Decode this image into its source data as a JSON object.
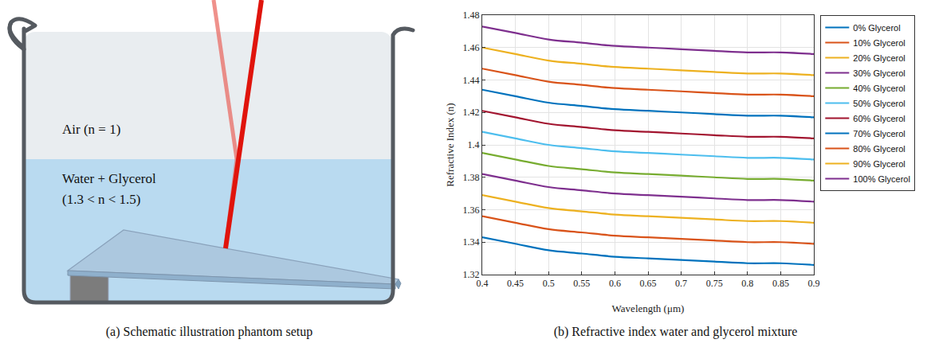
{
  "diagram": {
    "caption": "(a) Schematic illustration phantom setup",
    "air_label": "Air (n = 1)",
    "liquid_label": [
      "Water + Glycerol",
      "(1.3 < n < 1.5)"
    ]
  },
  "chart_data": {
    "type": "line",
    "caption": "(b) Refractive index water and glycerol mixture",
    "x_label": "Wavelength (μm)",
    "y_label": "Refractive Index (n)",
    "x": [
      0.4,
      0.45,
      0.5,
      0.55,
      0.6,
      0.65,
      0.7,
      0.75,
      0.8,
      0.85,
      0.9
    ],
    "series": [
      {
        "name": "0% Glycerol",
        "color": "#0072BD",
        "values": [
          1.343,
          1.339,
          1.335,
          1.333,
          1.331,
          1.33,
          1.329,
          1.328,
          1.327,
          1.327,
          1.326
        ]
      },
      {
        "name": "10% Glycerol",
        "color": "#D95319",
        "values": [
          1.356,
          1.352,
          1.348,
          1.346,
          1.344,
          1.343,
          1.342,
          1.341,
          1.34,
          1.34,
          1.339
        ]
      },
      {
        "name": "20% Glycerol",
        "color": "#EDB120",
        "values": [
          1.369,
          1.365,
          1.361,
          1.359,
          1.357,
          1.356,
          1.355,
          1.354,
          1.353,
          1.353,
          1.352
        ]
      },
      {
        "name": "30% Glycerol",
        "color": "#7E2F8E",
        "values": [
          1.382,
          1.378,
          1.374,
          1.372,
          1.37,
          1.369,
          1.368,
          1.367,
          1.366,
          1.366,
          1.365
        ]
      },
      {
        "name": "40% Glycerol",
        "color": "#77AC30",
        "values": [
          1.395,
          1.391,
          1.387,
          1.385,
          1.383,
          1.382,
          1.381,
          1.38,
          1.379,
          1.379,
          1.378
        ]
      },
      {
        "name": "50% Glycerol",
        "color": "#4DBEEE",
        "values": [
          1.408,
          1.404,
          1.4,
          1.398,
          1.396,
          1.395,
          1.394,
          1.393,
          1.392,
          1.392,
          1.391
        ]
      },
      {
        "name": "60% Glycerol",
        "color": "#A2142F",
        "values": [
          1.421,
          1.417,
          1.413,
          1.411,
          1.409,
          1.408,
          1.407,
          1.406,
          1.405,
          1.405,
          1.404
        ]
      },
      {
        "name": "70% Glycerol",
        "color": "#0072BD",
        "values": [
          1.434,
          1.43,
          1.426,
          1.424,
          1.422,
          1.421,
          1.42,
          1.419,
          1.418,
          1.418,
          1.417
        ]
      },
      {
        "name": "80% Glycerol",
        "color": "#D95319",
        "values": [
          1.447,
          1.443,
          1.439,
          1.437,
          1.435,
          1.434,
          1.433,
          1.432,
          1.431,
          1.431,
          1.43
        ]
      },
      {
        "name": "90% Glycerol",
        "color": "#EDB120",
        "values": [
          1.46,
          1.456,
          1.452,
          1.45,
          1.448,
          1.447,
          1.446,
          1.445,
          1.444,
          1.444,
          1.443
        ]
      },
      {
        "name": "100% Glycerol",
        "color": "#7E2F8E",
        "values": [
          1.473,
          1.469,
          1.465,
          1.463,
          1.461,
          1.46,
          1.459,
          1.458,
          1.457,
          1.457,
          1.456
        ]
      }
    ],
    "xlim": [
      0.4,
      0.9
    ],
    "xticks": [
      0.4,
      0.45,
      0.5,
      0.55,
      0.6,
      0.65,
      0.7,
      0.75,
      0.8,
      0.85,
      0.9
    ],
    "ylim": [
      1.32,
      1.48
    ],
    "yticks": [
      1.32,
      1.34,
      1.36,
      1.38,
      1.4,
      1.42,
      1.44,
      1.46,
      1.48
    ],
    "grid": true,
    "legend": "right"
  }
}
